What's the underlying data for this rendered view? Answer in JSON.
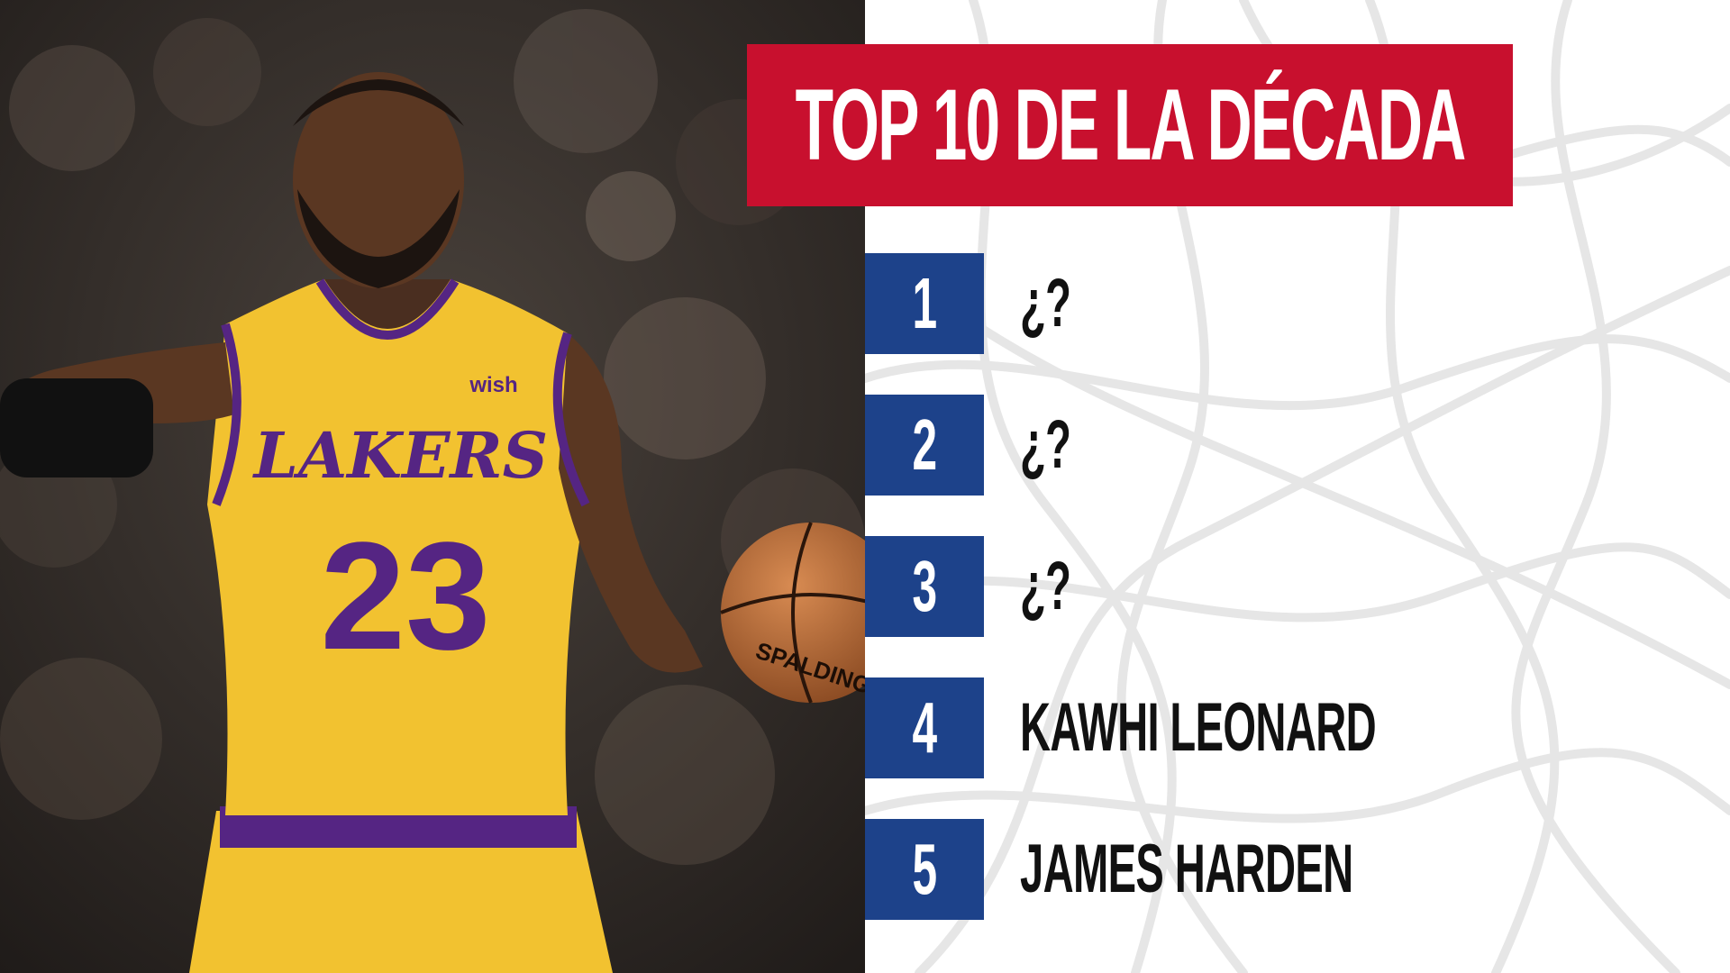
{
  "title": "TOP 10 DE LA DÉCADA",
  "photo": {
    "jersey_brand": "LAKERS",
    "jersey_number": "23",
    "sponsor": "wish",
    "ball_brand": "SPALDING",
    "colors": {
      "jersey": "#f2c230",
      "trim": "#552583",
      "background": "#2b2623"
    }
  },
  "rankings": [
    {
      "rank": "1",
      "name": "¿?"
    },
    {
      "rank": "2",
      "name": "¿?"
    },
    {
      "rank": "3",
      "name": "¿?"
    },
    {
      "rank": "4",
      "name": "KAWHI LEONARD"
    },
    {
      "rank": "5",
      "name": "JAMES HARDEN"
    }
  ],
  "colors": {
    "title_banner": "#c8102e",
    "rank_box": "#1d428a",
    "name_text": "#111111",
    "net": "#e6e6e6"
  }
}
